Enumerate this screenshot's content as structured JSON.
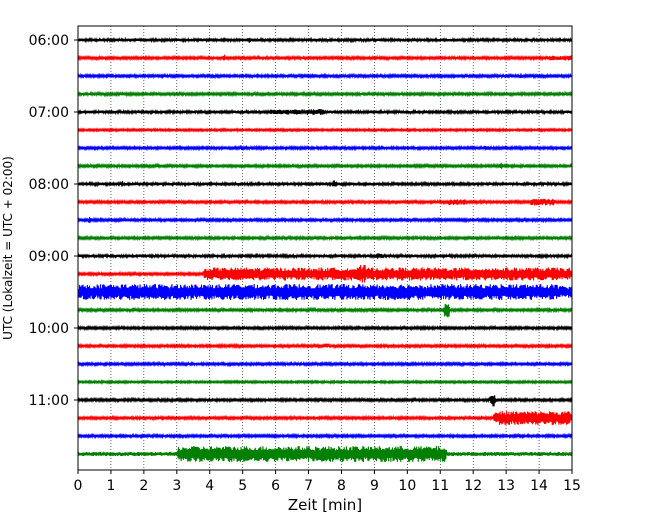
{
  "chart_data": {
    "type": "line",
    "title": "",
    "xlabel": "Zeit  [min]",
    "ylabel": "UTC (Lokalzeit = UTC + 02:00)",
    "xlim": [
      0,
      15
    ],
    "x_ticks": [
      0,
      1,
      2,
      3,
      4,
      5,
      6,
      7,
      8,
      9,
      10,
      11,
      12,
      13,
      14,
      15
    ],
    "y_tick_labels": [
      "06:00",
      "07:00",
      "08:00",
      "09:00",
      "10:00",
      "11:00"
    ],
    "y_tick_rows": [
      0,
      4,
      8,
      12,
      16,
      20
    ],
    "grid": "vertical dotted",
    "colors": [
      "#000000",
      "#ff0000",
      "#0000ff",
      "#008000"
    ],
    "series": [
      {
        "row": 0,
        "color": "#000000",
        "base_amp": 1.5,
        "bursts": [
          {
            "start": 5.1,
            "end": 5.3,
            "amp": 3
          }
        ]
      },
      {
        "row": 1,
        "color": "#ff0000",
        "base_amp": 1.2,
        "bursts": [
          {
            "start": 4.4,
            "end": 4.5,
            "amp": 4
          },
          {
            "start": 14.2,
            "end": 15,
            "amp": 2.5
          }
        ]
      },
      {
        "row": 2,
        "color": "#0000ff",
        "base_amp": 1.2,
        "bursts": [
          {
            "start": 13.4,
            "end": 13.5,
            "amp": 3
          }
        ]
      },
      {
        "row": 3,
        "color": "#008000",
        "base_amp": 1.2,
        "bursts": [
          {
            "start": 1.3,
            "end": 1.4,
            "amp": 3
          }
        ]
      },
      {
        "row": 4,
        "color": "#000000",
        "base_amp": 1.5,
        "bursts": [
          {
            "start": 5.8,
            "end": 6.8,
            "amp": 2.5
          },
          {
            "start": 6.9,
            "end": 7.5,
            "amp": 3
          }
        ]
      },
      {
        "row": 5,
        "color": "#ff0000",
        "base_amp": 1.0,
        "bursts": []
      },
      {
        "row": 6,
        "color": "#0000ff",
        "base_amp": 1.2,
        "bursts": [
          {
            "start": 4.9,
            "end": 5.0,
            "amp": 3
          },
          {
            "start": 12.3,
            "end": 12.5,
            "amp": 2.5
          }
        ]
      },
      {
        "row": 7,
        "color": "#008000",
        "base_amp": 1.2,
        "bursts": [
          {
            "start": 12.8,
            "end": 12.9,
            "amp": 4
          }
        ]
      },
      {
        "row": 8,
        "color": "#000000",
        "base_amp": 1.5,
        "bursts": [
          {
            "start": 1.3,
            "end": 1.4,
            "amp": 4
          },
          {
            "start": 7.7,
            "end": 7.9,
            "amp": 4
          }
        ]
      },
      {
        "row": 9,
        "color": "#ff0000",
        "base_amp": 1.2,
        "bursts": [
          {
            "start": 11.2,
            "end": 11.8,
            "amp": 3
          },
          {
            "start": 13.7,
            "end": 14.5,
            "amp": 3.5
          }
        ]
      },
      {
        "row": 10,
        "color": "#0000ff",
        "base_amp": 1.2,
        "bursts": [
          {
            "start": 0.3,
            "end": 0.4,
            "amp": 4
          }
        ]
      },
      {
        "row": 11,
        "color": "#008000",
        "base_amp": 1.2,
        "bursts": []
      },
      {
        "row": 12,
        "color": "#000000",
        "base_amp": 1.5,
        "bursts": [
          {
            "start": 9.0,
            "end": 9.3,
            "amp": 3
          }
        ]
      },
      {
        "row": 13,
        "color": "#ff0000",
        "base_amp": 1.2,
        "bursts": [
          {
            "start": 3.8,
            "end": 15,
            "amp": 6.5
          },
          {
            "start": 8.5,
            "end": 8.8,
            "amp": 9
          }
        ]
      },
      {
        "row": 14,
        "color": "#0000ff",
        "base_amp": 6,
        "bursts": [
          {
            "start": 0,
            "end": 14.6,
            "amp": 8
          },
          {
            "start": 3.8,
            "end": 3.9,
            "amp": 10
          }
        ]
      },
      {
        "row": 15,
        "color": "#008000",
        "base_amp": 1.2,
        "bursts": [
          {
            "start": 11.1,
            "end": 11.3,
            "amp": 9
          }
        ]
      },
      {
        "row": 16,
        "color": "#000000",
        "base_amp": 1.2,
        "bursts": [
          {
            "start": 7.9,
            "end": 8.0,
            "amp": 3
          }
        ]
      },
      {
        "row": 17,
        "color": "#ff0000",
        "base_amp": 1.2,
        "bursts": [
          {
            "start": 7.5,
            "end": 7.6,
            "amp": 4
          }
        ]
      },
      {
        "row": 18,
        "color": "#0000ff",
        "base_amp": 1.2,
        "bursts": []
      },
      {
        "row": 19,
        "color": "#008000",
        "base_amp": 1.0,
        "bursts": []
      },
      {
        "row": 20,
        "color": "#000000",
        "base_amp": 1.2,
        "bursts": [
          {
            "start": 12.5,
            "end": 12.7,
            "amp": 7
          }
        ]
      },
      {
        "row": 21,
        "color": "#ff0000",
        "base_amp": 1.2,
        "bursts": [
          {
            "start": 12.2,
            "end": 12.3,
            "amp": 3
          },
          {
            "start": 12.6,
            "end": 15,
            "amp": 7
          }
        ]
      },
      {
        "row": 22,
        "color": "#0000ff",
        "base_amp": 1.2,
        "bursts": [
          {
            "start": 6.7,
            "end": 6.8,
            "amp": 3
          }
        ]
      },
      {
        "row": 23,
        "color": "#008000",
        "base_amp": 2,
        "bursts": [
          {
            "start": 3.0,
            "end": 11.2,
            "amp": 8
          }
        ]
      }
    ]
  }
}
